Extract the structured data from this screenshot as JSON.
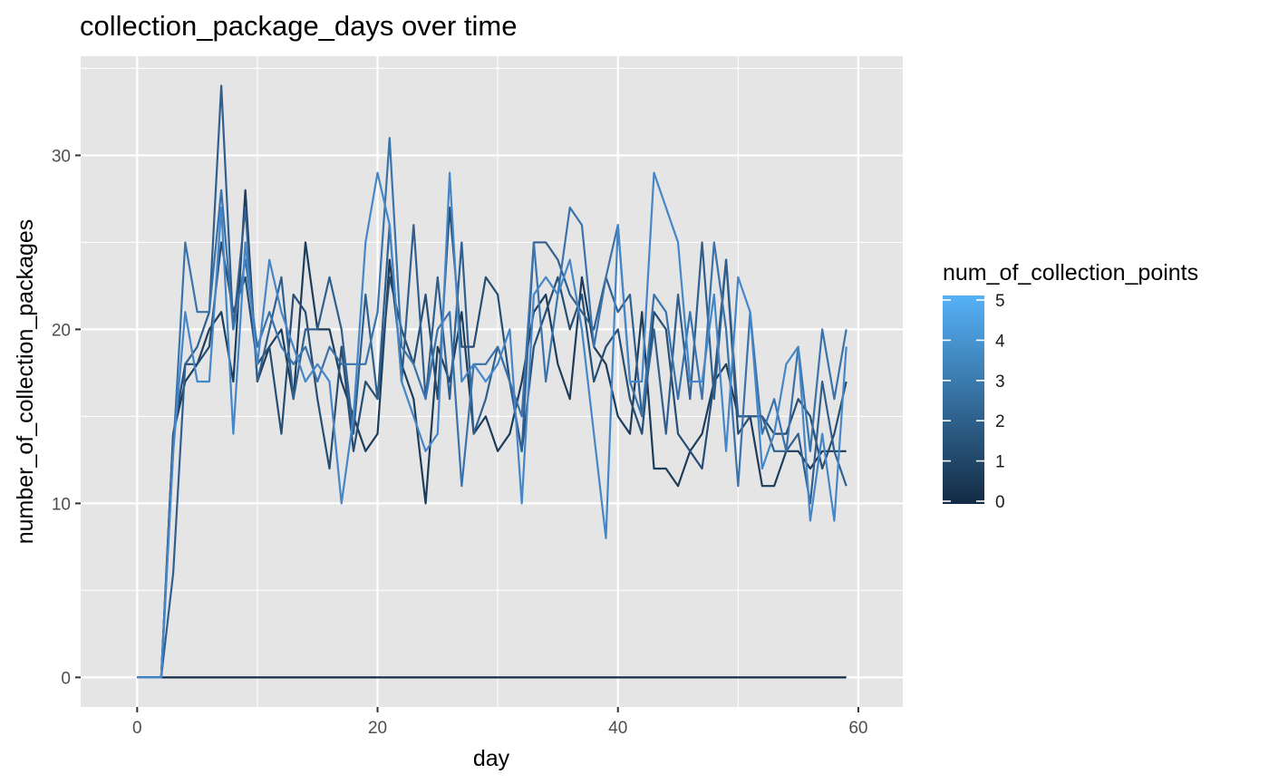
{
  "chart_data": {
    "type": "line",
    "title": "collection_package_days over time",
    "xlabel": "day",
    "ylabel": "number_of_collection_packages",
    "xlim": [
      -4.7,
      63.7
    ],
    "ylim": [
      -1.7,
      35.7
    ],
    "x_ticks": [
      0,
      20,
      40,
      60
    ],
    "y_ticks": [
      0,
      10,
      20,
      30
    ],
    "x_tick_labels": [
      "0",
      "20",
      "40",
      "60"
    ],
    "y_tick_labels": [
      "0",
      "10",
      "20",
      "30"
    ],
    "grid": true,
    "panel_background": "#e5e5e5",
    "legend": {
      "title": "num_of_collection_points",
      "position": "right",
      "type": "colorbar",
      "range": [
        0,
        5
      ],
      "breaks": [
        "0",
        "1",
        "2",
        "3",
        "4",
        "5"
      ],
      "color_low": "#132b43",
      "color_high": "#56b1f7"
    },
    "x": [
      0,
      1,
      2,
      3,
      4,
      5,
      6,
      7,
      8,
      9,
      10,
      11,
      12,
      13,
      14,
      15,
      16,
      17,
      18,
      19,
      20,
      21,
      22,
      23,
      24,
      25,
      26,
      27,
      28,
      29,
      30,
      31,
      32,
      33,
      34,
      35,
      36,
      37,
      38,
      39,
      40,
      41,
      42,
      43,
      44,
      45,
      46,
      47,
      48,
      49,
      50,
      51,
      52,
      53,
      54,
      55,
      56,
      57,
      58,
      59
    ],
    "series": [
      {
        "level": 0,
        "color": "#132b43",
        "values": [
          0,
          0,
          0,
          0,
          0,
          0,
          0,
          0,
          0,
          0,
          0,
          0,
          0,
          0,
          0,
          0,
          0,
          0,
          0,
          0,
          0,
          0,
          0,
          0,
          0,
          0,
          0,
          0,
          0,
          0,
          0,
          0,
          0,
          0,
          0,
          0,
          0,
          0,
          0,
          0,
          0,
          0,
          0,
          0,
          0,
          0,
          0,
          0,
          0,
          0,
          0,
          0,
          0,
          0,
          0,
          0,
          0,
          0,
          0,
          0
        ]
      },
      {
        "level": 1,
        "color": "#1c3c5a",
        "values": [
          0,
          0,
          0,
          14,
          17,
          18,
          20,
          21,
          17,
          28,
          17,
          19,
          20,
          16,
          25,
          20,
          20,
          17,
          15,
          13,
          14,
          24,
          18,
          16,
          10,
          19,
          17,
          21,
          14,
          15,
          13,
          14,
          17,
          21,
          22,
          18,
          16,
          23,
          19,
          18,
          15,
          14,
          21,
          12,
          12,
          11,
          13,
          14,
          17,
          18,
          15,
          15,
          11,
          11,
          13,
          13,
          12,
          13,
          13,
          13
        ]
      },
      {
        "level": 2,
        "color": "#264d73",
        "values": [
          0,
          0,
          0,
          14,
          18,
          18,
          19,
          25,
          21,
          23,
          18,
          19,
          14,
          22,
          21,
          16,
          12,
          19,
          13,
          17,
          16,
          23,
          20,
          18,
          22,
          16,
          27,
          19,
          19,
          23,
          22,
          17,
          13,
          19,
          21,
          23,
          20,
          22,
          17,
          19,
          20,
          16,
          14,
          21,
          20,
          14,
          13,
          12,
          17,
          24,
          14,
          15,
          15,
          14,
          14,
          16,
          15,
          12,
          14,
          17
        ]
      },
      {
        "level": 3,
        "color": "#305f8e",
        "values": [
          0,
          0,
          0,
          6,
          18,
          19,
          21,
          34,
          20,
          27,
          17,
          20,
          23,
          16,
          20,
          20,
          23,
          20,
          14,
          22,
          16,
          26,
          17,
          26,
          16,
          23,
          16,
          25,
          14,
          16,
          19,
          17,
          13,
          25,
          25,
          24,
          22,
          21,
          20,
          23,
          21,
          22,
          15,
          20,
          14,
          22,
          16,
          25,
          16,
          24,
          15,
          15,
          15,
          13,
          13,
          14,
          10,
          17,
          13,
          11
        ]
      },
      {
        "level": 4,
        "color": "#3a72ab",
        "values": [
          0,
          0,
          0,
          13,
          25,
          21,
          21,
          28,
          20,
          24,
          19,
          21,
          19,
          18,
          19,
          17,
          19,
          18,
          18,
          18,
          21,
          31,
          19,
          18,
          16,
          20,
          21,
          11,
          18,
          18,
          19,
          17,
          15,
          25,
          17,
          22,
          27,
          26,
          19,
          23,
          26,
          17,
          15,
          22,
          21,
          16,
          21,
          16,
          25,
          20,
          11,
          21,
          14,
          16,
          13,
          19,
          13,
          20,
          16,
          20
        ]
      },
      {
        "level": 5,
        "color": "#4586c8",
        "values": [
          0,
          0,
          0,
          13,
          21,
          17,
          17,
          27,
          14,
          25,
          18,
          24,
          21,
          19,
          17,
          18,
          17,
          10,
          15,
          25,
          29,
          26,
          17,
          15,
          13,
          14,
          29,
          17,
          18,
          17,
          18,
          20,
          10,
          22,
          23,
          22,
          24,
          20,
          14,
          8,
          26,
          17,
          17,
          29,
          27,
          25,
          17,
          17,
          22,
          13,
          23,
          21,
          12,
          14,
          18,
          19,
          9,
          14,
          9,
          19
        ]
      }
    ]
  }
}
